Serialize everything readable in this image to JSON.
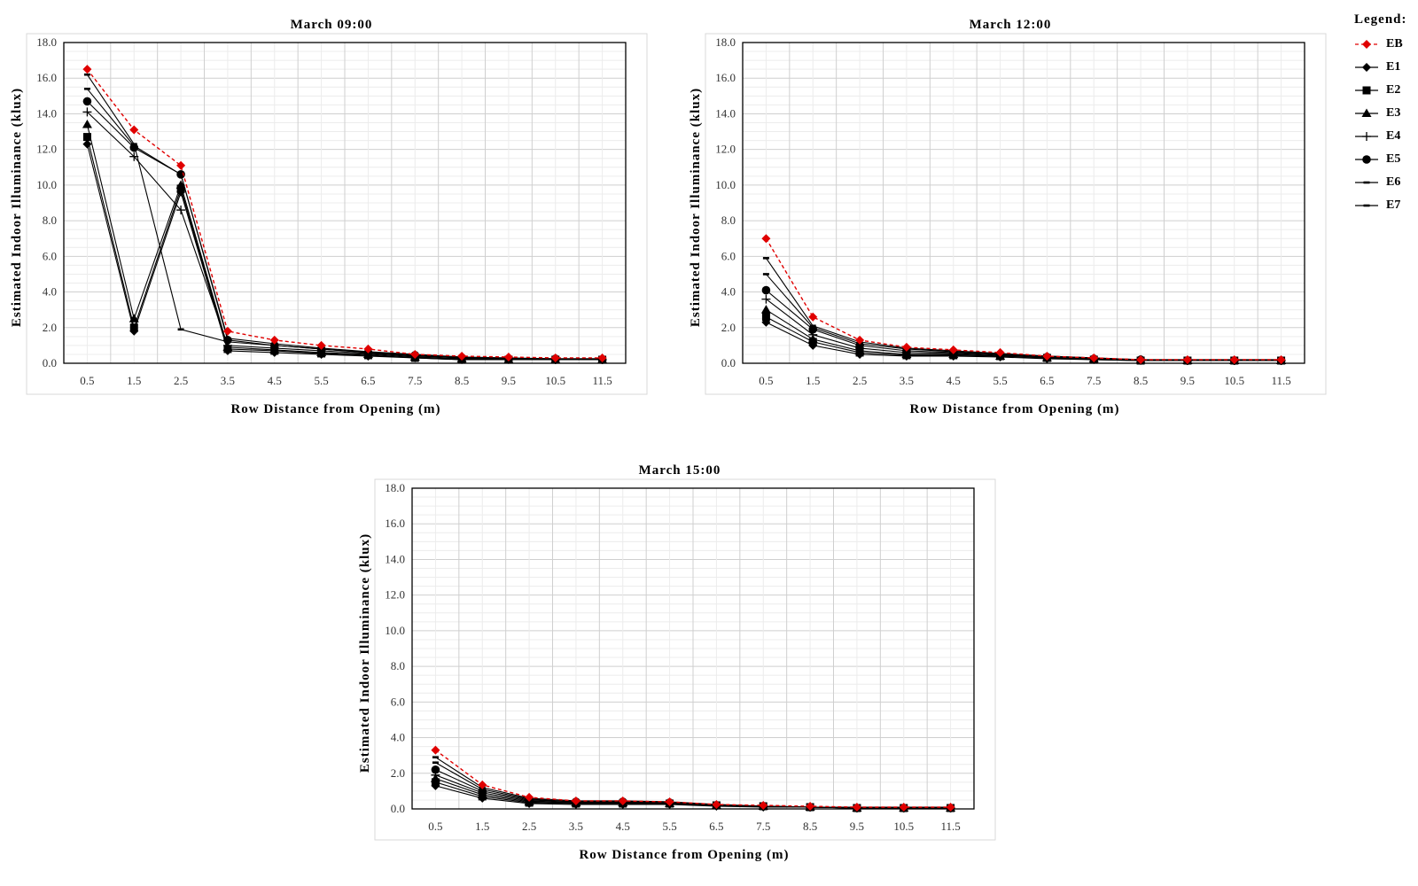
{
  "legend": {
    "title": "Legend:",
    "items": [
      {
        "name": "EB",
        "color": "#e00000",
        "marker": "diamond",
        "dashed": true
      },
      {
        "name": "E1",
        "color": "#000000",
        "marker": "diamond",
        "dashed": false
      },
      {
        "name": "E2",
        "color": "#000000",
        "marker": "square",
        "dashed": false
      },
      {
        "name": "E3",
        "color": "#000000",
        "marker": "triangle",
        "dashed": false
      },
      {
        "name": "E4",
        "color": "#000000",
        "marker": "plus",
        "dashed": false
      },
      {
        "name": "E5",
        "color": "#000000",
        "marker": "circle",
        "dashed": false
      },
      {
        "name": "E6",
        "color": "#000000",
        "marker": "dash",
        "dashed": false
      },
      {
        "name": "E7",
        "color": "#000000",
        "marker": "dash",
        "dashed": false
      }
    ]
  },
  "chart_data": [
    {
      "type": "line",
      "title": "March 09:00",
      "xlabel": "Row Distance from Opening (m)",
      "ylabel": "Estimated Indoor Illuminance (klux)",
      "categories": [
        "0.5",
        "1.5",
        "2.5",
        "3.5",
        "4.5",
        "5.5",
        "6.5",
        "7.5",
        "8.5",
        "9.5",
        "10.5",
        "11.5"
      ],
      "ylim": [
        0,
        18
      ],
      "yticks": [
        "0.0",
        "2.0",
        "4.0",
        "6.0",
        "8.0",
        "10.0",
        "12.0",
        "14.0",
        "16.0",
        "18.0"
      ],
      "grid": true,
      "series": [
        {
          "name": "EB",
          "values": [
            16.5,
            13.1,
            11.1,
            1.8,
            1.3,
            1.0,
            0.8,
            0.5,
            0.4,
            0.35,
            0.3,
            0.3
          ]
        },
        {
          "name": "E1",
          "values": [
            12.3,
            1.8,
            9.6,
            0.7,
            0.6,
            0.5,
            0.4,
            0.3,
            0.2,
            0.2,
            0.2,
            0.2
          ]
        },
        {
          "name": "E2",
          "values": [
            12.7,
            2.0,
            9.8,
            0.8,
            0.7,
            0.55,
            0.45,
            0.3,
            0.2,
            0.2,
            0.2,
            0.2
          ]
        },
        {
          "name": "E3",
          "values": [
            13.4,
            2.5,
            10.0,
            0.9,
            0.75,
            0.6,
            0.5,
            0.35,
            0.25,
            0.2,
            0.2,
            0.2
          ]
        },
        {
          "name": "E4",
          "values": [
            14.1,
            11.6,
            8.6,
            1.0,
            0.85,
            0.7,
            0.55,
            0.4,
            0.3,
            0.25,
            0.2,
            0.2
          ]
        },
        {
          "name": "E5",
          "values": [
            14.7,
            12.1,
            10.6,
            1.3,
            1.0,
            0.8,
            0.6,
            0.45,
            0.3,
            0.25,
            0.25,
            0.2
          ]
        },
        {
          "name": "E6",
          "values": [
            15.4,
            12.2,
            10.6,
            1.4,
            1.1,
            0.85,
            0.65,
            0.5,
            0.35,
            0.3,
            0.25,
            0.25
          ]
        },
        {
          "name": "E7",
          "values": [
            16.2,
            12.3,
            1.9,
            1.2,
            1.0,
            0.8,
            0.6,
            0.45,
            0.3,
            0.25,
            0.25,
            0.25
          ]
        }
      ]
    },
    {
      "type": "line",
      "title": "March 12:00",
      "xlabel": "Row Distance from Opening (m)",
      "ylabel": "Estimated Indoor Illuminance (klux)",
      "categories": [
        "0.5",
        "1.5",
        "2.5",
        "3.5",
        "4.5",
        "5.5",
        "6.5",
        "7.5",
        "8.5",
        "9.5",
        "10.5",
        "11.5"
      ],
      "ylim": [
        0,
        18
      ],
      "yticks": [
        "0.0",
        "2.0",
        "4.0",
        "6.0",
        "8.0",
        "10.0",
        "12.0",
        "14.0",
        "16.0",
        "18.0"
      ],
      "grid": true,
      "series": [
        {
          "name": "EB",
          "values": [
            7.0,
            2.6,
            1.3,
            0.9,
            0.75,
            0.6,
            0.4,
            0.3,
            0.2,
            0.2,
            0.2,
            0.2
          ]
        },
        {
          "name": "E1",
          "values": [
            2.3,
            1.0,
            0.5,
            0.4,
            0.4,
            0.35,
            0.25,
            0.2,
            0.15,
            0.15,
            0.15,
            0.15
          ]
        },
        {
          "name": "E2",
          "values": [
            2.6,
            1.2,
            0.6,
            0.45,
            0.45,
            0.4,
            0.3,
            0.2,
            0.15,
            0.15,
            0.15,
            0.15
          ]
        },
        {
          "name": "E3",
          "values": [
            3.0,
            1.35,
            0.7,
            0.5,
            0.5,
            0.4,
            0.3,
            0.25,
            0.2,
            0.15,
            0.15,
            0.15
          ]
        },
        {
          "name": "E4",
          "values": [
            3.6,
            1.6,
            0.85,
            0.6,
            0.55,
            0.45,
            0.35,
            0.25,
            0.2,
            0.15,
            0.15,
            0.15
          ]
        },
        {
          "name": "E5",
          "values": [
            4.1,
            1.9,
            1.0,
            0.7,
            0.6,
            0.5,
            0.35,
            0.25,
            0.2,
            0.15,
            0.15,
            0.15
          ]
        },
        {
          "name": "E6",
          "values": [
            5.0,
            2.0,
            1.1,
            0.8,
            0.65,
            0.5,
            0.4,
            0.3,
            0.2,
            0.15,
            0.15,
            0.15
          ]
        },
        {
          "name": "E7",
          "values": [
            5.9,
            2.1,
            1.2,
            0.85,
            0.7,
            0.55,
            0.4,
            0.3,
            0.2,
            0.2,
            0.2,
            0.2
          ]
        }
      ]
    },
    {
      "type": "line",
      "title": "March 15:00",
      "xlabel": "Row Distance from Opening (m)",
      "ylabel": "Estimated Indoor Illuminance (klux)",
      "categories": [
        "0.5",
        "1.5",
        "2.5",
        "3.5",
        "4.5",
        "5.5",
        "6.5",
        "7.5",
        "8.5",
        "9.5",
        "10.5",
        "11.5"
      ],
      "ylim": [
        0,
        18
      ],
      "yticks": [
        "0.0",
        "2.0",
        "4.0",
        "6.0",
        "8.0",
        "10.0",
        "12.0",
        "14.0",
        "16.0",
        "18.0"
      ],
      "grid": true,
      "series": [
        {
          "name": "EB",
          "values": [
            3.3,
            1.35,
            0.65,
            0.45,
            0.45,
            0.4,
            0.25,
            0.2,
            0.15,
            0.1,
            0.1,
            0.1
          ]
        },
        {
          "name": "E1",
          "values": [
            1.3,
            0.6,
            0.3,
            0.25,
            0.25,
            0.25,
            0.15,
            0.1,
            0.1,
            0.05,
            0.05,
            0.05
          ]
        },
        {
          "name": "E2",
          "values": [
            1.5,
            0.7,
            0.35,
            0.3,
            0.3,
            0.3,
            0.2,
            0.15,
            0.1,
            0.05,
            0.05,
            0.05
          ]
        },
        {
          "name": "E3",
          "values": [
            1.7,
            0.8,
            0.4,
            0.35,
            0.35,
            0.3,
            0.2,
            0.15,
            0.1,
            0.05,
            0.05,
            0.05
          ]
        },
        {
          "name": "E4",
          "values": [
            1.9,
            0.9,
            0.45,
            0.35,
            0.35,
            0.3,
            0.2,
            0.15,
            0.1,
            0.05,
            0.05,
            0.05
          ]
        },
        {
          "name": "E5",
          "values": [
            2.2,
            1.0,
            0.5,
            0.4,
            0.4,
            0.35,
            0.2,
            0.15,
            0.1,
            0.05,
            0.05,
            0.05
          ]
        },
        {
          "name": "E6",
          "values": [
            2.6,
            1.1,
            0.55,
            0.4,
            0.4,
            0.35,
            0.2,
            0.15,
            0.1,
            0.05,
            0.05,
            0.05
          ]
        },
        {
          "name": "E7",
          "values": [
            2.9,
            1.2,
            0.6,
            0.45,
            0.45,
            0.4,
            0.25,
            0.15,
            0.1,
            0.1,
            0.1,
            0.1
          ]
        }
      ]
    }
  ]
}
